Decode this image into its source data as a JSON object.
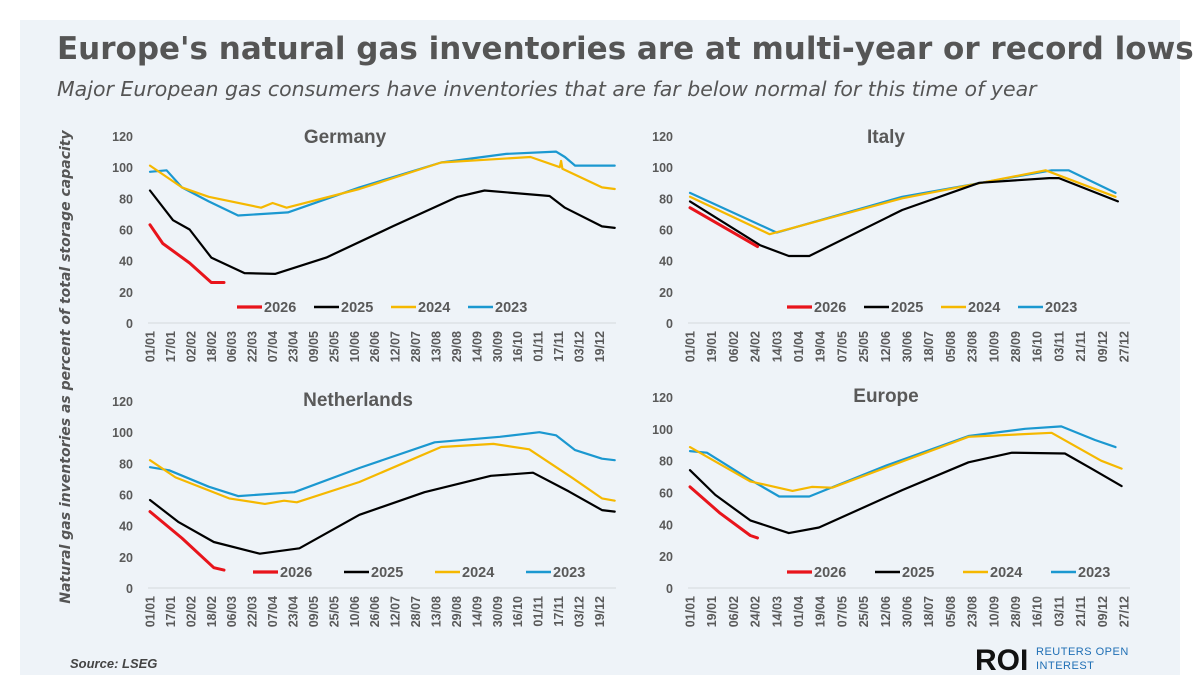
{
  "title": "Europe's natural gas inventories are at multi-year or record lows",
  "subtitle": "Major European gas consumers have inventories that are far below normal for this time of year",
  "y_axis_title": "Natural gas inventories as percent of total storage capacity",
  "source": "Source: LSEG",
  "logo": {
    "mark": "ROI",
    "line1": "REUTERS OPEN",
    "line2": "INTEREST"
  },
  "colors": {
    "2026": "#e8141b",
    "2025": "#000000",
    "2024": "#f5b800",
    "2023": "#1b98d0",
    "text": "#595959",
    "background": "#eef3f8"
  },
  "chart_data": [
    {
      "type": "line",
      "title": "Germany",
      "ylim": [
        0,
        120
      ],
      "yticks": [
        0,
        20,
        40,
        60,
        80,
        100,
        120
      ],
      "xticks": [
        "01/01",
        "17/01",
        "02/02",
        "18/02",
        "06/03",
        "22/03",
        "07/04",
        "23/04",
        "09/05",
        "25/05",
        "10/06",
        "26/06",
        "12/07",
        "28/07",
        "13/08",
        "29/08",
        "14/09",
        "30/09",
        "16/10",
        "01/11",
        "17/11",
        "03/12",
        "19/12"
      ],
      "legend": "bottom",
      "grid": false,
      "series": [
        {
          "name": "2026",
          "points": [
            [
              "01/01",
              63
            ],
            [
              "11/01",
              51
            ],
            [
              "01/02",
              38.5
            ],
            [
              "18/02",
              26
            ],
            [
              "28/02",
              26
            ]
          ]
        },
        {
          "name": "2025",
          "points": [
            [
              "01/01",
              85
            ],
            [
              "19/01",
              66
            ],
            [
              "01/02",
              60
            ],
            [
              "18/02",
              42
            ],
            [
              "16/03",
              32
            ],
            [
              "09/04",
              31.5
            ],
            [
              "19/05",
              42
            ],
            [
              "10/07",
              62
            ],
            [
              "30/08",
              81
            ],
            [
              "20/09",
              85
            ],
            [
              "10/11",
              81.5
            ],
            [
              "22/11",
              74
            ],
            [
              "21/12",
              62
            ],
            [
              "31/12",
              61
            ]
          ]
        },
        {
          "name": "2024",
          "points": [
            [
              "01/01",
              101
            ],
            [
              "26/01",
              87
            ],
            [
              "16/02",
              81
            ],
            [
              "29/03",
              74
            ],
            [
              "07/04",
              77
            ],
            [
              "18/04",
              74
            ],
            [
              "14/06",
              86
            ],
            [
              "17/08",
              103
            ],
            [
              "26/10",
              106.5
            ],
            [
              "18/11",
              100
            ],
            [
              "19/11",
              104
            ],
            [
              "20/11",
              99
            ],
            [
              "21/12",
              87
            ],
            [
              "31/12",
              86
            ]
          ]
        },
        {
          "name": "2023",
          "points": [
            [
              "01/01",
              97
            ],
            [
              "14/01",
              98
            ],
            [
              "26/01",
              87
            ],
            [
              "16/02",
              78
            ],
            [
              "11/03",
              69
            ],
            [
              "19/04",
              71
            ],
            [
              "14/06",
              87
            ],
            [
              "17/08",
              103
            ],
            [
              "07/10",
              108.5
            ],
            [
              "15/11",
              110
            ],
            [
              "22/11",
              106.5
            ],
            [
              "30/11",
              101
            ],
            [
              "31/12",
              101
            ]
          ]
        }
      ]
    },
    {
      "type": "line",
      "title": "Italy",
      "ylim": [
        0,
        120
      ],
      "yticks": [
        0,
        20,
        40,
        60,
        80,
        100,
        120
      ],
      "xticks": [
        "01/01",
        "19/01",
        "06/02",
        "24/02",
        "14/03",
        "01/04",
        "19/04",
        "07/05",
        "25/05",
        "12/06",
        "30/06",
        "18/07",
        "05/08",
        "23/08",
        "10/09",
        "28/09",
        "16/10",
        "03/11",
        "21/11",
        "09/12",
        "27/12"
      ],
      "legend": "bottom",
      "grid": false,
      "series": [
        {
          "name": "2026",
          "points": [
            [
              "01/01",
              74
            ],
            [
              "26/02",
              49
            ]
          ]
        },
        {
          "name": "2025",
          "points": [
            [
              "01/01",
              78
            ],
            [
              "28/02",
              50
            ],
            [
              "24/03",
              43
            ],
            [
              "10/04",
              43
            ],
            [
              "26/06",
              72.5
            ],
            [
              "29/08",
              90
            ],
            [
              "26/10",
              93
            ],
            [
              "03/11",
              93
            ],
            [
              "22/12",
              78
            ]
          ]
        },
        {
          "name": "2024",
          "points": [
            [
              "01/01",
              81
            ],
            [
              "08/03",
              57
            ],
            [
              "26/06",
              80
            ],
            [
              "23/10",
              98
            ],
            [
              "20/12",
              81
            ]
          ]
        },
        {
          "name": "2023",
          "points": [
            [
              "01/01",
              83.5
            ],
            [
              "14/03",
              58
            ],
            [
              "26/06",
              81
            ],
            [
              "28/10",
              98
            ],
            [
              "11/11",
              98
            ],
            [
              "20/12",
              83.5
            ]
          ]
        }
      ]
    },
    {
      "type": "line",
      "title": "Netherlands",
      "ylim": [
        0,
        120
      ],
      "yticks": [
        0,
        20,
        40,
        60,
        80,
        100,
        120
      ],
      "xticks": [
        "01/01",
        "17/01",
        "02/02",
        "18/02",
        "06/03",
        "22/03",
        "07/04",
        "23/04",
        "09/05",
        "25/05",
        "10/06",
        "26/06",
        "12/07",
        "28/07",
        "13/08",
        "29/08",
        "14/09",
        "30/09",
        "16/10",
        "01/11",
        "17/11",
        "03/12",
        "19/12"
      ],
      "legend": "bottom",
      "grid": false,
      "series": [
        {
          "name": "2026",
          "points": [
            [
              "01/01",
              49
            ],
            [
              "26/01",
              32
            ],
            [
              "20/02",
              13
            ],
            [
              "28/02",
              11.5
            ]
          ]
        },
        {
          "name": "2025",
          "points": [
            [
              "01/01",
              56.5
            ],
            [
              "23/01",
              42.5
            ],
            [
              "20/02",
              29.5
            ],
            [
              "28/03",
              22
            ],
            [
              "28/04",
              25.5
            ],
            [
              "14/06",
              47
            ],
            [
              "04/08",
              61.5
            ],
            [
              "25/09",
              72
            ],
            [
              "28/10",
              74
            ],
            [
              "25/11",
              62
            ],
            [
              "21/12",
              50
            ],
            [
              "31/12",
              49
            ]
          ]
        },
        {
          "name": "2024",
          "points": [
            [
              "01/01",
              82
            ],
            [
              "21/01",
              71
            ],
            [
              "04/03",
              57.5
            ],
            [
              "01/04",
              54
            ],
            [
              "16/04",
              56
            ],
            [
              "26/04",
              55
            ],
            [
              "14/06",
              68
            ],
            [
              "17/08",
              90.5
            ],
            [
              "27/09",
              92.5
            ],
            [
              "25/10",
              89
            ],
            [
              "28/11",
              70.5
            ],
            [
              "21/12",
              57.5
            ],
            [
              "31/12",
              56
            ]
          ]
        },
        {
          "name": "2023",
          "points": [
            [
              "01/01",
              77.5
            ],
            [
              "16/01",
              75.5
            ],
            [
              "16/02",
              65
            ],
            [
              "11/03",
              59
            ],
            [
              "24/04",
              61.5
            ],
            [
              "14/06",
              77
            ],
            [
              "12/08",
              93.5
            ],
            [
              "02/10",
              97
            ],
            [
              "02/11",
              100
            ],
            [
              "15/11",
              98
            ],
            [
              "30/11",
              88.5
            ],
            [
              "21/12",
              83
            ],
            [
              "31/12",
              82
            ]
          ]
        }
      ]
    },
    {
      "type": "line",
      "title": "Europe",
      "ylim": [
        0,
        120
      ],
      "yticks": [
        0,
        20,
        40,
        60,
        80,
        100,
        120
      ],
      "xticks": [
        "01/01",
        "19/01",
        "06/02",
        "24/02",
        "14/03",
        "01/04",
        "19/04",
        "07/05",
        "25/05",
        "12/06",
        "30/06",
        "18/07",
        "05/08",
        "23/08",
        "10/09",
        "28/09",
        "16/10",
        "03/11",
        "21/11",
        "09/12",
        "27/12"
      ],
      "legend": "bottom",
      "grid": false,
      "series": [
        {
          "name": "2026",
          "points": [
            [
              "01/01",
              63.5
            ],
            [
              "26/01",
              47
            ],
            [
              "20/02",
              33
            ],
            [
              "26/02",
              31.5
            ]
          ]
        },
        {
          "name": "2025",
          "points": [
            [
              "01/01",
              74
            ],
            [
              "22/01",
              58.5
            ],
            [
              "20/02",
              42.5
            ],
            [
              "24/03",
              34.5
            ],
            [
              "18/04",
              38
            ],
            [
              "26/06",
              61.5
            ],
            [
              "20/08",
              79
            ],
            [
              "25/09",
              85
            ],
            [
              "08/11",
              84.5
            ],
            [
              "30/11",
              75
            ],
            [
              "25/12",
              64
            ]
          ]
        },
        {
          "name": "2024",
          "points": [
            [
              "01/01",
              88.5
            ],
            [
              "20/02",
              67
            ],
            [
              "27/03",
              61
            ],
            [
              "12/04",
              63.5
            ],
            [
              "29/04",
              63
            ],
            [
              "20/08",
              95
            ],
            [
              "28/10",
              97.5
            ],
            [
              "08/12",
              80
            ],
            [
              "25/12",
              75
            ]
          ]
        },
        {
          "name": "2023",
          "points": [
            [
              "01/01",
              86
            ],
            [
              "15/01",
              85
            ],
            [
              "20/02",
              68
            ],
            [
              "16/03",
              57.5
            ],
            [
              "10/04",
              57.5
            ],
            [
              "13/06",
              77
            ],
            [
              "20/08",
              95.5
            ],
            [
              "06/10",
              100
            ],
            [
              "05/11",
              101.5
            ],
            [
              "03/12",
              93
            ],
            [
              "20/12",
              88.5
            ]
          ]
        }
      ]
    }
  ]
}
